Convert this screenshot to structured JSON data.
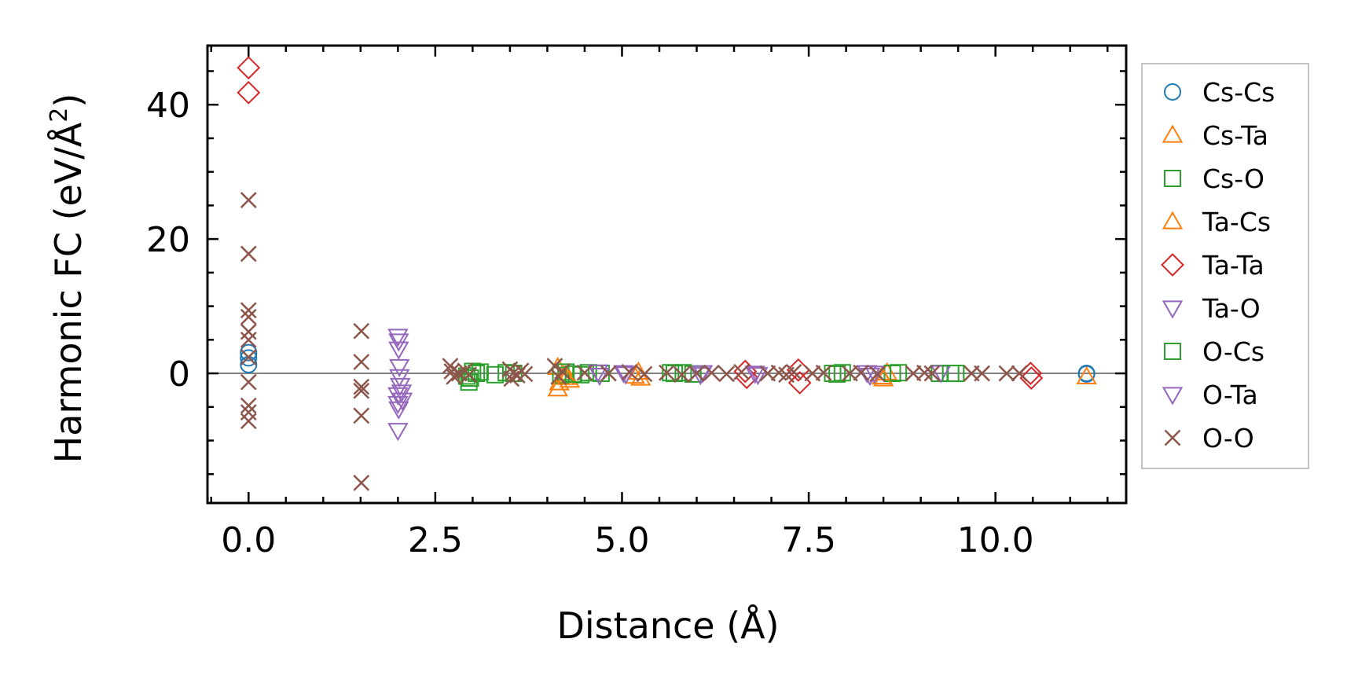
{
  "chart_data": {
    "type": "scatter",
    "title": "",
    "xlabel": "Distance (Å)",
    "ylabel": "Harmonic FC (eV/Å",
    "ylabel_sup": "2",
    "ylabel_close": ")",
    "xlim": [
      -0.55,
      11.75
    ],
    "ylim": [
      -19.3,
      48.8
    ],
    "xticks": [
      0.0,
      2.5,
      5.0,
      7.5,
      10.0
    ],
    "xtick_labels": [
      "0.0",
      "2.5",
      "5.0",
      "7.5",
      "10.0"
    ],
    "xminor_step": 0.5,
    "yticks": [
      0,
      20,
      40
    ],
    "ytick_labels": [
      "0",
      "20",
      "40"
    ],
    "yminor_step": 5,
    "zero_line": true,
    "legend_position": "right",
    "series": [
      {
        "name": "Cs-Cs",
        "marker": "circle",
        "color": "#1f77b4",
        "points": [
          [
            0.0,
            3.1
          ],
          [
            0.0,
            2.3
          ],
          [
            0.0,
            1.3
          ],
          [
            11.22,
            0.0
          ],
          [
            11.22,
            -0.1
          ]
        ]
      },
      {
        "name": "Cs-Ta",
        "marker": "triangle-up",
        "color": "#ff7f0e",
        "points": [
          [
            4.14,
            -2.3
          ],
          [
            4.14,
            0.9
          ],
          [
            4.22,
            -0.3
          ],
          [
            4.3,
            -1.0
          ],
          [
            5.17,
            -0.4
          ],
          [
            5.22,
            0.2
          ],
          [
            8.48,
            -0.5
          ],
          [
            8.55,
            0.1
          ],
          [
            11.22,
            -0.5
          ]
        ]
      },
      {
        "name": "Cs-O",
        "marker": "square",
        "color": "#2ca02c",
        "points": [
          [
            2.95,
            -1.3
          ],
          [
            2.97,
            -0.7
          ],
          [
            3.0,
            0.3
          ],
          [
            3.05,
            0.0
          ],
          [
            3.3,
            -0.2
          ],
          [
            3.45,
            0.1
          ],
          [
            4.18,
            -0.3
          ],
          [
            4.25,
            0.2
          ],
          [
            4.45,
            -0.2
          ],
          [
            4.55,
            0.1
          ],
          [
            4.72,
            0.0
          ],
          [
            5.7,
            0.0
          ],
          [
            5.82,
            0.1
          ],
          [
            5.95,
            -0.1
          ],
          [
            7.82,
            0.0
          ],
          [
            7.95,
            0.1
          ],
          [
            8.62,
            0.0
          ],
          [
            9.25,
            0.0
          ],
          [
            9.47,
            0.0
          ]
        ]
      },
      {
        "name": "Ta-Cs",
        "marker": "triangle-up",
        "color": "#ff7f0e",
        "points": [
          [
            4.16,
            -1.4
          ],
          [
            4.26,
            -0.6
          ],
          [
            5.25,
            -0.7
          ],
          [
            8.5,
            -0.8
          ]
        ]
      },
      {
        "name": "Ta-Ta",
        "marker": "diamond",
        "color": "#d62728",
        "points": [
          [
            0.0,
            45.5
          ],
          [
            0.0,
            41.8
          ],
          [
            6.65,
            0.3
          ],
          [
            6.67,
            -0.6
          ],
          [
            7.36,
            0.5
          ],
          [
            7.38,
            -1.4
          ],
          [
            10.47,
            0.0
          ],
          [
            10.48,
            -0.7
          ]
        ]
      },
      {
        "name": "Ta-O",
        "marker": "triangle-down",
        "color": "#9467bd",
        "points": [
          [
            2.0,
            5.5
          ],
          [
            2.01,
            4.8
          ],
          [
            2.01,
            3.6
          ],
          [
            2.02,
            1.0
          ],
          [
            2.02,
            -0.5
          ],
          [
            2.03,
            -1.8
          ],
          [
            2.0,
            -3.2
          ],
          [
            2.0,
            -4.5
          ],
          [
            2.01,
            -5.3
          ],
          [
            2.0,
            -8.5
          ],
          [
            4.68,
            0.2
          ],
          [
            5.02,
            0.1
          ],
          [
            6.08,
            0.1
          ],
          [
            6.78,
            0.0
          ],
          [
            8.28,
            0.1
          ],
          [
            8.38,
            0.0
          ],
          [
            9.27,
            0.1
          ]
        ]
      },
      {
        "name": "O-Cs",
        "marker": "square",
        "color": "#2ca02c",
        "points": [
          [
            2.92,
            -0.4
          ],
          [
            3.1,
            0.2
          ],
          [
            3.55,
            0.0
          ],
          [
            4.35,
            -0.1
          ],
          [
            5.65,
            0.1
          ],
          [
            7.88,
            -0.1
          ],
          [
            8.7,
            0.1
          ],
          [
            9.4,
            0.0
          ]
        ]
      },
      {
        "name": "O-Ta",
        "marker": "triangle-down",
        "color": "#9467bd",
        "points": [
          [
            2.05,
            -2.8
          ],
          [
            2.06,
            -4.0
          ],
          [
            4.7,
            -0.3
          ],
          [
            5.05,
            -0.1
          ],
          [
            6.05,
            -0.2
          ],
          [
            6.82,
            -0.2
          ],
          [
            8.32,
            -0.3
          ]
        ]
      },
      {
        "name": "O-O",
        "marker": "x",
        "color": "#8c564b",
        "points": [
          [
            0.0,
            25.8
          ],
          [
            0.0,
            17.8
          ],
          [
            0.0,
            9.4
          ],
          [
            0.0,
            8.4
          ],
          [
            0.0,
            6.2
          ],
          [
            0.0,
            5.0
          ],
          [
            0.0,
            2.4
          ],
          [
            0.0,
            -1.3
          ],
          [
            0.0,
            -4.8
          ],
          [
            0.0,
            -5.8
          ],
          [
            0.0,
            -7.1
          ],
          [
            1.51,
            6.3
          ],
          [
            1.51,
            1.7
          ],
          [
            1.51,
            -2.0
          ],
          [
            1.51,
            -2.6
          ],
          [
            1.51,
            -6.3
          ],
          [
            1.51,
            -16.3
          ],
          [
            2.7,
            1.1
          ],
          [
            2.72,
            0.3
          ],
          [
            2.75,
            -0.5
          ],
          [
            2.82,
            0.0
          ],
          [
            2.9,
            0.4
          ],
          [
            2.95,
            -0.2
          ],
          [
            3.5,
            0.6
          ],
          [
            3.52,
            -0.8
          ],
          [
            3.55,
            0.1
          ],
          [
            3.6,
            -0.3
          ],
          [
            3.65,
            0.4
          ],
          [
            3.7,
            -0.1
          ],
          [
            4.1,
            1.1
          ],
          [
            4.15,
            -0.5
          ],
          [
            4.2,
            0.3
          ],
          [
            4.5,
            0.1
          ],
          [
            4.82,
            0.0
          ],
          [
            5.1,
            0.2
          ],
          [
            5.3,
            -0.1
          ],
          [
            5.6,
            0.1
          ],
          [
            5.8,
            -0.2
          ],
          [
            6.0,
            0.0
          ],
          [
            6.2,
            0.1
          ],
          [
            6.4,
            -0.1
          ],
          [
            6.6,
            0.2
          ],
          [
            6.95,
            0.0
          ],
          [
            7.1,
            0.1
          ],
          [
            7.2,
            -0.2
          ],
          [
            7.3,
            0.2
          ],
          [
            7.55,
            0.0
          ],
          [
            7.7,
            0.1
          ],
          [
            8.05,
            0.0
          ],
          [
            8.2,
            0.1
          ],
          [
            8.42,
            -0.1
          ],
          [
            8.9,
            0.0
          ],
          [
            9.05,
            0.1
          ],
          [
            9.15,
            0.0
          ],
          [
            9.68,
            0.0
          ],
          [
            9.82,
            0.0
          ],
          [
            10.15,
            0.0
          ],
          [
            10.32,
            0.0
          ]
        ]
      }
    ]
  }
}
